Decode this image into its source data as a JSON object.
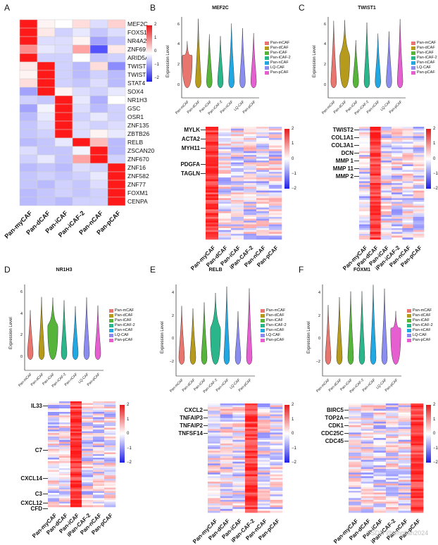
{
  "panels": {
    "A": {
      "letter": "A",
      "genes": [
        "MEF2C",
        "FOXS1",
        "NR4A2",
        "ZNF691",
        "ARID5A",
        "TWIST2",
        "TWIST1",
        "STAT4",
        "SOX4",
        "NR1H3",
        "GSC",
        "OSR1",
        "ZNF135",
        "ZBTB26",
        "RELB",
        "ZSCAN20",
        "ZNF670",
        "ZNF16",
        "ZNF582",
        "ZNF77",
        "FOXM1",
        "CENPA"
      ],
      "groups": [
        "Pan-myCAF",
        "Pan-dCAF",
        "Pan-iCAF",
        "Pan-iCAF-2",
        "Pan-nCAF",
        "Pan-pCAF"
      ],
      "colorbar_ticks": [
        "2",
        "1",
        "0",
        "−1",
        "−2"
      ],
      "values": [
        [
          2,
          0.1,
          0.0,
          0.3,
          -0.3,
          0.4
        ],
        [
          2,
          0.2,
          -0.4,
          -0.2,
          -0.5,
          -0.3
        ],
        [
          2,
          -0.3,
          -0.3,
          0.1,
          -0.8,
          -0.5
        ],
        [
          1,
          -0.2,
          -0.3,
          0.8,
          -1.5,
          0.2
        ],
        [
          2,
          -0.4,
          -0.4,
          0.0,
          -0.5,
          -0.4
        ],
        [
          0.2,
          2,
          -0.4,
          -0.6,
          0.3,
          -1.0
        ],
        [
          0.1,
          2,
          -0.4,
          -0.6,
          -0.4,
          -0.6
        ],
        [
          0.3,
          2,
          -0.4,
          -0.5,
          -0.3,
          -0.6
        ],
        [
          -0.8,
          2,
          0.1,
          -0.3,
          -0.4,
          -0.2
        ],
        [
          -0.4,
          -0.5,
          2,
          -0.2,
          -0.7,
          0.0
        ],
        [
          -0.8,
          -0.1,
          2,
          -0.3,
          -0.6,
          -0.4
        ],
        [
          -0.6,
          -0.2,
          2,
          -0.4,
          -0.2,
          -0.4
        ],
        [
          -0.5,
          -0.3,
          2,
          -0.3,
          -0.4,
          -0.3
        ],
        [
          -0.5,
          -0.4,
          2,
          -0.3,
          0.1,
          -0.2
        ],
        [
          -0.6,
          -0.5,
          -0.2,
          2,
          0.6,
          -0.6
        ],
        [
          -0.3,
          -0.5,
          -0.5,
          -0.1,
          2,
          -0.6
        ],
        [
          -0.4,
          -0.2,
          -0.5,
          0.8,
          2,
          -0.4
        ],
        [
          -0.6,
          -0.5,
          -0.6,
          -0.3,
          -0.4,
          2
        ],
        [
          -0.5,
          -0.4,
          -0.5,
          -0.4,
          -0.2,
          2
        ],
        [
          -0.5,
          -0.6,
          -0.4,
          -0.5,
          -0.3,
          2
        ],
        [
          -0.6,
          -0.5,
          -0.4,
          -0.5,
          -0.4,
          2
        ],
        [
          -0.6,
          -0.5,
          -0.6,
          -0.4,
          -0.4,
          2
        ]
      ]
    },
    "B": {
      "letter": "B",
      "title": "MEF2C",
      "markers": [
        "MYLK",
        "ACTA2",
        "MYH11",
        "PDGFA",
        "TAGLN"
      ],
      "hot_col": 0
    },
    "C": {
      "letter": "C",
      "title": "TWIST1",
      "markers": [
        "TWIST2",
        "COL1A1",
        "COL3A1",
        "DCN",
        "MMP 1",
        "MMP 11",
        "MMP 2"
      ],
      "hot_col": 1
    },
    "D": {
      "letter": "D",
      "title": "NR1H3",
      "markers": [
        "IL33",
        "C7",
        "CXCL14",
        "C3",
        "CXCL12",
        "CFD"
      ],
      "hot_col": 2
    },
    "E": {
      "letter": "E",
      "title": "RELB",
      "markers": [
        "CXCL2",
        "TNFAIP3",
        "TNFAIP2",
        "TNFSF14"
      ],
      "hot_col": 3
    },
    "F": {
      "letter": "F",
      "title": "FOXM1",
      "markers": [
        "BIRC5",
        "TOP2A",
        "CDK1",
        "CDC25C",
        "CDC45"
      ],
      "hot_col": 5
    }
  },
  "violin": {
    "ylabel": "Expression Level",
    "groups": [
      "Pan-mCAF",
      "Pan-dCAF",
      "Pan-iCAF",
      "Pan-iCAF-2",
      "Pan-nCAF",
      "LQ-CAF",
      "Pan-pCAF"
    ],
    "colors": [
      "#e8766e",
      "#b59a1c",
      "#57b43a",
      "#2bb58a",
      "#21a8e2",
      "#8a8cf0",
      "#e55fd0"
    ]
  },
  "heatmap_groups": [
    "Pan-myCAF",
    "Pan-dCAF",
    "Pan-iCAF",
    "iPan-CAF-2",
    "Pan-nCAF",
    "Pan-pCAF"
  ],
  "heatmap_groups_C": [
    "Pan-myCAF",
    "Pan-dCAF",
    "Pan-iCAF",
    "iPan-iCAF-2",
    "Pan-nCAF",
    "Pan-pCAF"
  ],
  "heatmap_groups_D": [
    "Pan-myCAF",
    "Pan-dCAF",
    "Pan-iCAF",
    "iPan-CAF-2",
    "Pan-nCAF",
    "Pan-pCAF"
  ],
  "heatmap_groups_F": [
    "Pan-myCAF",
    "Pan-dCAF",
    "Pan-iCAF",
    "iPan-iCAF-2",
    "Pan-nCAF",
    "Pan-pCAF"
  ],
  "colorbar_ticks": [
    "2",
    "1",
    "0",
    "−1",
    "−2"
  ],
  "violin_ticks_B": [
    "6",
    "4",
    "2",
    "0"
  ],
  "violin_ticks_C": [
    "6",
    "4",
    "2",
    "0"
  ],
  "violin_ticks_D": [
    "6",
    "4",
    "2",
    "0"
  ],
  "violin_ticks_E": [
    "4",
    "2",
    "0",
    "−2"
  ],
  "violin_ticks_F": [
    "4",
    "2",
    "0",
    "−2"
  ],
  "watermark": "CSDN @lenglian2024"
}
